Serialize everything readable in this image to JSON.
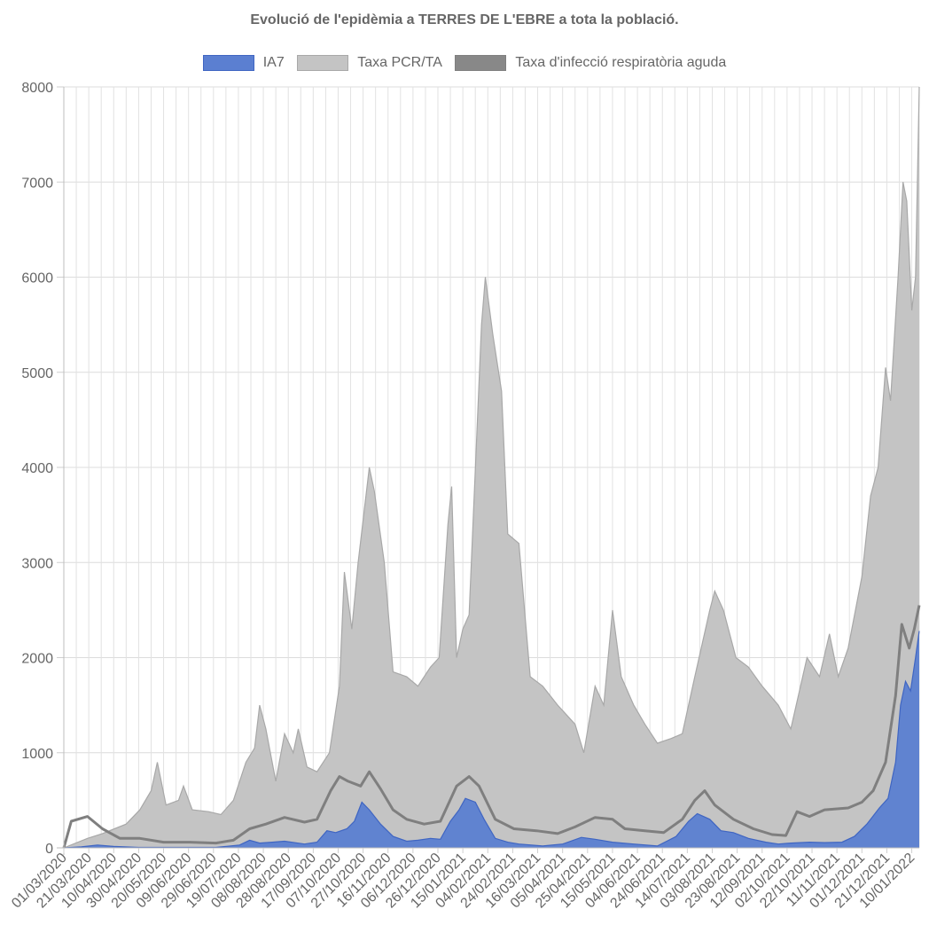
{
  "chart_data": {
    "type": "area",
    "title": "Evolució de l'epidèmia a TERRES DE L'EBRE a tota la població.",
    "xlabel": "",
    "ylabel": "",
    "ylim": [
      0,
      8000
    ],
    "yticks": [
      0,
      1000,
      2000,
      3000,
      4000,
      5000,
      6000,
      7000,
      8000
    ],
    "grid": true,
    "legend_position": "top",
    "x_tick_labels": [
      "01/03/2020",
      "21/03/2020",
      "10/04/2020",
      "30/04/2020",
      "20/05/2020",
      "09/06/2020",
      "29/06/2020",
      "19/07/2020",
      "08/08/2020",
      "28/08/2020",
      "17/09/2020",
      "07/10/2020",
      "27/10/2020",
      "16/11/2020",
      "06/12/2020",
      "26/12/2020",
      "15/01/2021",
      "04/02/2021",
      "24/02/2021",
      "16/03/2021",
      "05/04/2021",
      "25/04/2021",
      "15/05/2021",
      "04/06/2021",
      "24/06/2021",
      "14/07/2021",
      "03/08/2021",
      "23/08/2021",
      "12/09/2021",
      "02/10/2021",
      "22/10/2021",
      "11/11/2021",
      "01/12/2021",
      "21/12/2021",
      "10/01/2022"
    ],
    "x_start": "2020-03-01",
    "x_end": "2022-01-16",
    "series": [
      {
        "name": "IA7",
        "style": "area",
        "fill": "#5b7fd1",
        "stroke": "#3f65c2",
        "points": [
          [
            "2020-03-01",
            0
          ],
          [
            "2020-03-15",
            10
          ],
          [
            "2020-03-28",
            30
          ],
          [
            "2020-04-10",
            15
          ],
          [
            "2020-04-30",
            5
          ],
          [
            "2020-07-01",
            5
          ],
          [
            "2020-07-20",
            30
          ],
          [
            "2020-07-28",
            80
          ],
          [
            "2020-08-05",
            50
          ],
          [
            "2020-08-15",
            60
          ],
          [
            "2020-08-25",
            70
          ],
          [
            "2020-09-10",
            40
          ],
          [
            "2020-09-20",
            60
          ],
          [
            "2020-09-28",
            180
          ],
          [
            "2020-10-05",
            160
          ],
          [
            "2020-10-14",
            200
          ],
          [
            "2020-10-20",
            280
          ],
          [
            "2020-10-26",
            480
          ],
          [
            "2020-11-01",
            400
          ],
          [
            "2020-11-10",
            250
          ],
          [
            "2020-11-20",
            120
          ],
          [
            "2020-12-01",
            70
          ],
          [
            "2020-12-10",
            80
          ],
          [
            "2020-12-20",
            100
          ],
          [
            "2020-12-28",
            90
          ],
          [
            "2021-01-05",
            280
          ],
          [
            "2021-01-12",
            400
          ],
          [
            "2021-01-17",
            520
          ],
          [
            "2021-01-25",
            480
          ],
          [
            "2021-02-01",
            300
          ],
          [
            "2021-02-10",
            100
          ],
          [
            "2021-02-20",
            60
          ],
          [
            "2021-03-01",
            40
          ],
          [
            "2021-03-20",
            20
          ],
          [
            "2021-04-05",
            40
          ],
          [
            "2021-04-20",
            110
          ],
          [
            "2021-05-01",
            90
          ],
          [
            "2021-05-15",
            60
          ],
          [
            "2021-06-01",
            40
          ],
          [
            "2021-06-20",
            20
          ],
          [
            "2021-07-05",
            120
          ],
          [
            "2021-07-15",
            280
          ],
          [
            "2021-07-22",
            360
          ],
          [
            "2021-08-01",
            300
          ],
          [
            "2021-08-10",
            180
          ],
          [
            "2021-08-20",
            160
          ],
          [
            "2021-09-01",
            100
          ],
          [
            "2021-09-15",
            60
          ],
          [
            "2021-09-25",
            40
          ],
          [
            "2021-10-05",
            50
          ],
          [
            "2021-10-20",
            60
          ],
          [
            "2021-11-01",
            55
          ],
          [
            "2021-11-15",
            60
          ],
          [
            "2021-11-25",
            120
          ],
          [
            "2021-12-05",
            250
          ],
          [
            "2021-12-15",
            420
          ],
          [
            "2021-12-22",
            520
          ],
          [
            "2021-12-28",
            900
          ],
          [
            "2022-01-01",
            1500
          ],
          [
            "2022-01-05",
            1750
          ],
          [
            "2022-01-09",
            1650
          ],
          [
            "2022-01-13",
            2000
          ],
          [
            "2022-01-16",
            2280
          ]
        ]
      },
      {
        "name": "Taxa PCR/TA",
        "style": "area",
        "fill": "#c4c4c4",
        "stroke": "#a8a8a8",
        "points": [
          [
            "2020-03-01",
            0
          ],
          [
            "2020-03-20",
            100
          ],
          [
            "2020-04-01",
            150
          ],
          [
            "2020-04-20",
            250
          ],
          [
            "2020-05-01",
            400
          ],
          [
            "2020-05-10",
            600
          ],
          [
            "2020-05-15",
            900
          ],
          [
            "2020-05-22",
            450
          ],
          [
            "2020-06-01",
            500
          ],
          [
            "2020-06-05",
            650
          ],
          [
            "2020-06-12",
            400
          ],
          [
            "2020-06-25",
            380
          ],
          [
            "2020-07-05",
            350
          ],
          [
            "2020-07-15",
            500
          ],
          [
            "2020-07-25",
            900
          ],
          [
            "2020-08-01",
            1050
          ],
          [
            "2020-08-05",
            1500
          ],
          [
            "2020-08-10",
            1250
          ],
          [
            "2020-08-18",
            700
          ],
          [
            "2020-08-25",
            1200
          ],
          [
            "2020-09-01",
            1000
          ],
          [
            "2020-09-05",
            1250
          ],
          [
            "2020-09-12",
            850
          ],
          [
            "2020-09-20",
            800
          ],
          [
            "2020-09-30",
            1000
          ],
          [
            "2020-10-08",
            1700
          ],
          [
            "2020-10-12",
            2900
          ],
          [
            "2020-10-18",
            2300
          ],
          [
            "2020-10-23",
            3000
          ],
          [
            "2020-11-01",
            4000
          ],
          [
            "2020-11-05",
            3750
          ],
          [
            "2020-11-13",
            3000
          ],
          [
            "2020-11-20",
            1850
          ],
          [
            "2020-12-01",
            1800
          ],
          [
            "2020-12-10",
            1700
          ],
          [
            "2020-12-20",
            1900
          ],
          [
            "2020-12-27",
            2000
          ],
          [
            "2021-01-03",
            3400
          ],
          [
            "2021-01-06",
            3800
          ],
          [
            "2021-01-10",
            2000
          ],
          [
            "2021-01-15",
            2300
          ],
          [
            "2021-01-20",
            2450
          ],
          [
            "2021-01-30",
            5500
          ],
          [
            "2021-02-02",
            6000
          ],
          [
            "2021-02-08",
            5400
          ],
          [
            "2021-02-15",
            4800
          ],
          [
            "2021-02-20",
            3300
          ],
          [
            "2021-03-01",
            3200
          ],
          [
            "2021-03-10",
            1800
          ],
          [
            "2021-03-20",
            1700
          ],
          [
            "2021-04-01",
            1500
          ],
          [
            "2021-04-15",
            1300
          ],
          [
            "2021-04-22",
            1000
          ],
          [
            "2021-05-01",
            1700
          ],
          [
            "2021-05-08",
            1500
          ],
          [
            "2021-05-15",
            2500
          ],
          [
            "2021-05-22",
            1800
          ],
          [
            "2021-06-01",
            1500
          ],
          [
            "2021-06-10",
            1300
          ],
          [
            "2021-06-20",
            1100
          ],
          [
            "2021-07-01",
            1150
          ],
          [
            "2021-07-10",
            1200
          ],
          [
            "2021-07-20",
            1800
          ],
          [
            "2021-08-01",
            2500
          ],
          [
            "2021-08-05",
            2700
          ],
          [
            "2021-08-12",
            2500
          ],
          [
            "2021-08-22",
            2000
          ],
          [
            "2021-09-01",
            1900
          ],
          [
            "2021-09-12",
            1700
          ],
          [
            "2021-09-25",
            1500
          ],
          [
            "2021-10-05",
            1250
          ],
          [
            "2021-10-18",
            2000
          ],
          [
            "2021-10-28",
            1800
          ],
          [
            "2021-11-05",
            2250
          ],
          [
            "2021-11-12",
            1800
          ],
          [
            "2021-11-20",
            2100
          ],
          [
            "2021-12-01",
            2850
          ],
          [
            "2021-12-08",
            3700
          ],
          [
            "2021-12-14",
            4000
          ],
          [
            "2021-12-20",
            5050
          ],
          [
            "2021-12-24",
            4700
          ],
          [
            "2021-12-30",
            6000
          ],
          [
            "2022-01-03",
            7000
          ],
          [
            "2022-01-06",
            6800
          ],
          [
            "2022-01-10",
            5650
          ],
          [
            "2022-01-13",
            6000
          ],
          [
            "2022-01-16",
            8000
          ]
        ]
      },
      {
        "name": "Taxa d'infecció respiratòria aguda",
        "style": "line",
        "fill": "#888888",
        "stroke": "#7f7f7f",
        "points": [
          [
            "2020-03-01",
            0
          ],
          [
            "2020-03-07",
            280
          ],
          [
            "2020-03-20",
            330
          ],
          [
            "2020-04-01",
            200
          ],
          [
            "2020-04-15",
            100
          ],
          [
            "2020-05-01",
            100
          ],
          [
            "2020-05-20",
            60
          ],
          [
            "2020-06-10",
            60
          ],
          [
            "2020-07-01",
            50
          ],
          [
            "2020-07-15",
            80
          ],
          [
            "2020-07-28",
            200
          ],
          [
            "2020-08-10",
            250
          ],
          [
            "2020-08-25",
            320
          ],
          [
            "2020-09-10",
            270
          ],
          [
            "2020-09-20",
            300
          ],
          [
            "2020-10-01",
            600
          ],
          [
            "2020-10-08",
            750
          ],
          [
            "2020-10-15",
            700
          ],
          [
            "2020-10-25",
            650
          ],
          [
            "2020-11-01",
            800
          ],
          [
            "2020-11-10",
            620
          ],
          [
            "2020-11-20",
            400
          ],
          [
            "2020-12-01",
            300
          ],
          [
            "2020-12-15",
            250
          ],
          [
            "2020-12-28",
            280
          ],
          [
            "2021-01-10",
            650
          ],
          [
            "2021-01-20",
            750
          ],
          [
            "2021-01-28",
            650
          ],
          [
            "2021-02-10",
            300
          ],
          [
            "2021-02-25",
            200
          ],
          [
            "2021-03-15",
            180
          ],
          [
            "2021-04-01",
            150
          ],
          [
            "2021-04-15",
            220
          ],
          [
            "2021-05-01",
            320
          ],
          [
            "2021-05-15",
            300
          ],
          [
            "2021-05-25",
            200
          ],
          [
            "2021-06-10",
            180
          ],
          [
            "2021-06-25",
            160
          ],
          [
            "2021-07-10",
            300
          ],
          [
            "2021-07-20",
            500
          ],
          [
            "2021-07-28",
            600
          ],
          [
            "2021-08-05",
            450
          ],
          [
            "2021-08-20",
            300
          ],
          [
            "2021-09-05",
            200
          ],
          [
            "2021-09-20",
            140
          ],
          [
            "2021-10-01",
            130
          ],
          [
            "2021-10-10",
            380
          ],
          [
            "2021-10-20",
            330
          ],
          [
            "2021-11-01",
            400
          ],
          [
            "2021-11-20",
            420
          ],
          [
            "2021-12-01",
            480
          ],
          [
            "2021-12-10",
            600
          ],
          [
            "2021-12-20",
            900
          ],
          [
            "2021-12-28",
            1600
          ],
          [
            "2022-01-02",
            2350
          ],
          [
            "2022-01-08",
            2100
          ],
          [
            "2022-01-12",
            2300
          ],
          [
            "2022-01-16",
            2550
          ]
        ]
      }
    ]
  }
}
